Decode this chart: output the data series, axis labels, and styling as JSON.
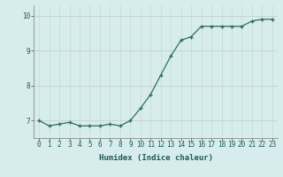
{
  "x": [
    0,
    1,
    2,
    3,
    4,
    5,
    6,
    7,
    8,
    9,
    10,
    11,
    12,
    13,
    14,
    15,
    16,
    17,
    18,
    19,
    20,
    21,
    22,
    23
  ],
  "y": [
    7.0,
    6.85,
    6.9,
    6.95,
    6.85,
    6.85,
    6.85,
    6.9,
    6.85,
    7.0,
    7.35,
    7.75,
    8.3,
    8.85,
    9.3,
    9.4,
    9.7,
    9.7,
    9.7,
    9.7,
    9.7,
    9.85,
    9.9,
    9.9
  ],
  "xlabel": "Humidex (Indice chaleur)",
  "ylim": [
    6.5,
    10.3
  ],
  "xlim": [
    -0.5,
    23.5
  ],
  "yticks": [
    7,
    8,
    9,
    10
  ],
  "xticks": [
    0,
    1,
    2,
    3,
    4,
    5,
    6,
    7,
    8,
    9,
    10,
    11,
    12,
    13,
    14,
    15,
    16,
    17,
    18,
    19,
    20,
    21,
    22,
    23
  ],
  "line_color": "#2d6e62",
  "marker_color": "#2d6e62",
  "bg_color": "#d7eded",
  "grid_color_v": "#c8d8d8",
  "grid_color_h": "#c0c8c8",
  "axis_color": "#888888",
  "text_color": "#1a5c52",
  "tick_fontsize": 5.5,
  "xlabel_fontsize": 6.5
}
